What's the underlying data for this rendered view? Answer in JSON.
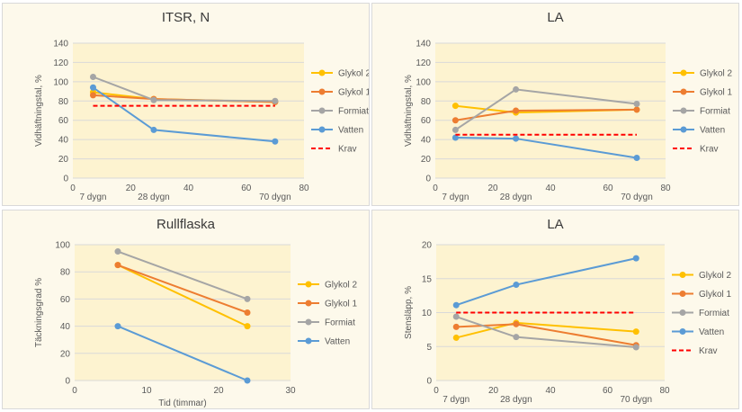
{
  "colors": {
    "glykol2": "#ffc000",
    "glykol1": "#ed7d31",
    "formiat": "#a5a5a5",
    "vatten": "#5b9bd5",
    "krav": "#ff0000",
    "grid": "#d9d9d9",
    "plot_bg": "#fdf3d0",
    "panel_bg": "#fdf9eb"
  },
  "chart_data": [
    {
      "type": "line",
      "title": "ITSR, N",
      "ylabel": "Vidhäftningstal, %",
      "xlim": [
        0,
        80
      ],
      "ylim": [
        0,
        140
      ],
      "xticks": [
        0,
        20,
        40,
        60,
        80
      ],
      "yticks": [
        0,
        20,
        40,
        60,
        80,
        100,
        120,
        140
      ],
      "xcategory_labels": [
        {
          "x": 7,
          "label": "7 dygn"
        },
        {
          "x": 28,
          "label": "28 dygn"
        },
        {
          "x": 70,
          "label": "70 dygn"
        }
      ],
      "legend_position": "right",
      "series": [
        {
          "name": "Glykol 2",
          "color_key": "glykol2",
          "points": [
            [
              7,
              89
            ],
            [
              28,
              82
            ],
            [
              70,
              79
            ]
          ]
        },
        {
          "name": "Glykol 1",
          "color_key": "glykol1",
          "points": [
            [
              7,
              86
            ],
            [
              28,
              82
            ],
            [
              70,
              79
            ]
          ]
        },
        {
          "name": "Formiat",
          "color_key": "formiat",
          "points": [
            [
              7,
              105
            ],
            [
              28,
              81
            ],
            [
              70,
              80
            ]
          ]
        },
        {
          "name": "Vatten",
          "color_key": "vatten",
          "points": [
            [
              7,
              94
            ],
            [
              28,
              50
            ],
            [
              70,
              38
            ]
          ]
        },
        {
          "name": "Krav",
          "color_key": "krav",
          "dashed": true,
          "points": [
            [
              7,
              75
            ],
            [
              70,
              75
            ]
          ]
        }
      ]
    },
    {
      "type": "line",
      "title": "LA",
      "ylabel": "Vidhäftningstal, %",
      "xlim": [
        0,
        80
      ],
      "ylim": [
        0,
        140
      ],
      "xticks": [
        0,
        20,
        40,
        60,
        80
      ],
      "yticks": [
        0,
        20,
        40,
        60,
        80,
        100,
        120,
        140
      ],
      "xcategory_labels": [
        {
          "x": 7,
          "label": "7 dygn"
        },
        {
          "x": 28,
          "label": "28 dygn"
        },
        {
          "x": 70,
          "label": "70 dygn"
        }
      ],
      "legend_position": "right",
      "series": [
        {
          "name": "Glykol 2",
          "color_key": "glykol2",
          "points": [
            [
              7,
              75
            ],
            [
              28,
              68
            ],
            [
              70,
              71
            ]
          ]
        },
        {
          "name": "Glykol 1",
          "color_key": "glykol1",
          "points": [
            [
              7,
              60
            ],
            [
              28,
              70
            ],
            [
              70,
              71
            ]
          ]
        },
        {
          "name": "Formiat",
          "color_key": "formiat",
          "points": [
            [
              7,
              50
            ],
            [
              28,
              92
            ],
            [
              70,
              77
            ]
          ]
        },
        {
          "name": "Vatten",
          "color_key": "vatten",
          "points": [
            [
              7,
              42
            ],
            [
              28,
              41
            ],
            [
              70,
              21
            ]
          ]
        },
        {
          "name": "Krav",
          "color_key": "krav",
          "dashed": true,
          "points": [
            [
              7,
              45
            ],
            [
              70,
              45
            ]
          ]
        }
      ]
    },
    {
      "type": "line",
      "title": "Rullflaska",
      "xlabel": "Tid (timmar)",
      "ylabel": "Täckningsgrad %",
      "xlim": [
        0,
        30
      ],
      "ylim": [
        0,
        100
      ],
      "xticks": [
        0,
        10,
        20,
        30
      ],
      "yticks": [
        0,
        20,
        40,
        60,
        80,
        100
      ],
      "xcategory_labels": [],
      "legend_position": "right",
      "series": [
        {
          "name": "Glykol 2",
          "color_key": "glykol2",
          "points": [
            [
              6,
              85
            ],
            [
              24,
              40
            ]
          ]
        },
        {
          "name": "Glykol 1",
          "color_key": "glykol1",
          "points": [
            [
              6,
              85
            ],
            [
              24,
              50
            ]
          ]
        },
        {
          "name": "Formiat",
          "color_key": "formiat",
          "points": [
            [
              6,
              95
            ],
            [
              24,
              60
            ]
          ]
        },
        {
          "name": "Vatten",
          "color_key": "vatten",
          "points": [
            [
              6,
              40
            ],
            [
              24,
              0
            ]
          ]
        }
      ]
    },
    {
      "type": "line",
      "title": "LA",
      "ylabel": "Stensläpp, %",
      "xlim": [
        0,
        80
      ],
      "ylim": [
        0,
        20
      ],
      "xticks": [
        0,
        20,
        40,
        60,
        80
      ],
      "yticks": [
        0,
        5,
        10,
        15,
        20
      ],
      "xcategory_labels": [
        {
          "x": 7,
          "label": "7 dygn"
        },
        {
          "x": 28,
          "label": "28 dygn"
        },
        {
          "x": 70,
          "label": "70 dygn"
        }
      ],
      "legend_position": "right",
      "series": [
        {
          "name": "Glykol 2",
          "color_key": "glykol2",
          "points": [
            [
              7,
              6.3
            ],
            [
              28,
              8.5
            ],
            [
              70,
              7.2
            ]
          ]
        },
        {
          "name": "Glykol 1",
          "color_key": "glykol1",
          "points": [
            [
              7,
              7.9
            ],
            [
              28,
              8.3
            ],
            [
              70,
              5.2
            ]
          ]
        },
        {
          "name": "Formiat",
          "color_key": "formiat",
          "points": [
            [
              7,
              9.4
            ],
            [
              28,
              6.4
            ],
            [
              70,
              4.9
            ]
          ]
        },
        {
          "name": "Vatten",
          "color_key": "vatten",
          "points": [
            [
              7,
              11.1
            ],
            [
              28,
              14.1
            ],
            [
              70,
              18
            ]
          ]
        },
        {
          "name": "Krav",
          "color_key": "krav",
          "dashed": true,
          "points": [
            [
              7,
              10
            ],
            [
              70,
              10
            ]
          ]
        }
      ]
    }
  ]
}
